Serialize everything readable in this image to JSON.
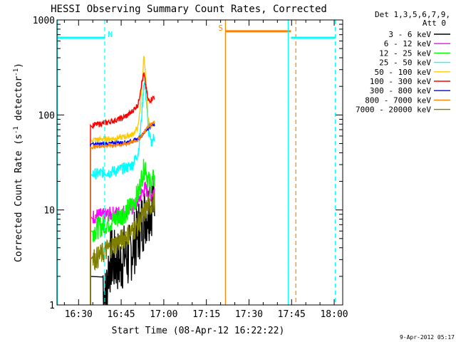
{
  "chart_data": {
    "type": "line",
    "title": "HESSI Observing Summary Count Rates, Corrected",
    "xlabel": "Start Time (08-Apr-12 16:22:22)",
    "ylabel_main": "Corrected Count Rate (s",
    "ylabel_sup1": "-1",
    "ylabel_mid": " detector",
    "ylabel_sup2": "-1",
    "ylabel_end": ")",
    "x_unit": "minutes since 16:00 UT",
    "xlim": [
      22.4,
      123
    ],
    "ylim": [
      1,
      1000
    ],
    "yscale": "log",
    "x_ticks": [
      {
        "value": 30,
        "label": "16:30"
      },
      {
        "value": 45,
        "label": "16:45"
      },
      {
        "value": 60,
        "label": "17:00"
      },
      {
        "value": 75,
        "label": "17:15"
      },
      {
        "value": 90,
        "label": "17:30"
      },
      {
        "value": 105,
        "label": "17:45"
      },
      {
        "value": 120,
        "label": "18:00"
      }
    ],
    "y_ticks": [
      {
        "value": 1,
        "label": "1"
      },
      {
        "value": 10,
        "label": "10"
      },
      {
        "value": 100,
        "label": "100"
      },
      {
        "value": 1000,
        "label": "1000"
      }
    ],
    "legend_header": [
      "Det 1,3,5,6,7,9,",
      "Att 0"
    ],
    "series": [
      {
        "name": "3 - 6 keV",
        "color": "#000000",
        "x": [
          38.5,
          39.5,
          40.5,
          41.5,
          42.5,
          43.5,
          44.5,
          45.5,
          46.5,
          47.5,
          48.5,
          49.5,
          50.5,
          51.5,
          52.5,
          53.5,
          54.5,
          55.5,
          56.5
        ],
        "y": [
          2.0,
          1.1,
          2.5,
          3.0,
          2.8,
          3.0,
          2.6,
          3.1,
          3.5,
          3.0,
          3.8,
          4.5,
          5.2,
          6.5,
          7.5,
          9.0,
          10.0,
          11.5,
          12.5
        ],
        "noise": 0.35
      },
      {
        "name": "6 - 12 keV",
        "color": "#ff00ff",
        "x": [
          35,
          37,
          39,
          41,
          43,
          45,
          47,
          49,
          51,
          52.5,
          53.5,
          54.5,
          55.5,
          56.5
        ],
        "y": [
          8.5,
          8.8,
          8.7,
          9.0,
          9.2,
          9.4,
          9.8,
          10.5,
          12.5,
          15.5,
          17.0,
          15.0,
          14.5,
          16.0
        ],
        "noise": 0.08
      },
      {
        "name": "12 - 25 keV",
        "color": "#00ff00",
        "x": [
          35,
          37,
          39,
          41,
          43,
          45,
          47,
          49,
          51,
          52.5,
          53.5,
          54.5,
          55.5,
          56.5
        ],
        "y": [
          6.0,
          6.5,
          7.0,
          7.5,
          8.0,
          8.8,
          9.8,
          11.5,
          15.0,
          24.0,
          30.0,
          20.0,
          19.0,
          21.0
        ],
        "noise": 0.12
      },
      {
        "name": "25 - 50 keV",
        "color": "#00ffff",
        "x": [
          35,
          37,
          39,
          41,
          43,
          45,
          47,
          49,
          51,
          52,
          53,
          53.8,
          54.5,
          55.5,
          56.5
        ],
        "y": [
          24,
          24,
          25,
          25,
          26,
          27,
          28,
          30,
          40,
          80,
          230,
          150,
          70,
          50,
          58
        ],
        "noise": 0.06
      },
      {
        "name": "50 - 100 keV",
        "color": "#ffcc00",
        "x": [
          35,
          37,
          39,
          41,
          43,
          45,
          47,
          49,
          51,
          52,
          53,
          53.8,
          54.5,
          55.5,
          56.5
        ],
        "y": [
          55,
          55,
          56,
          56,
          57,
          58,
          60,
          62,
          75,
          150,
          420,
          200,
          90,
          75,
          85
        ],
        "noise": 0.03
      },
      {
        "name": "100 - 300 keV",
        "color": "#ff0000",
        "x": [
          35,
          37,
          39,
          41,
          43,
          45,
          47,
          49,
          51,
          52,
          53,
          53.8,
          54.5,
          55.5,
          56.5
        ],
        "y": [
          78,
          80,
          82,
          85,
          88,
          92,
          98,
          110,
          130,
          200,
          270,
          190,
          140,
          145,
          155
        ],
        "noise": 0.03
      },
      {
        "name": "300 - 800 keV",
        "color": "#0000ff",
        "x": [
          35,
          37,
          39,
          41,
          43,
          45,
          47,
          49,
          51,
          52,
          53,
          54,
          55,
          56.5
        ],
        "y": [
          49,
          49,
          50,
          50,
          51,
          51,
          52,
          53,
          56,
          60,
          65,
          70,
          75,
          80
        ],
        "noise": 0.02
      },
      {
        "name": "800 - 7000 keV",
        "color": "#ff8000",
        "x": [
          35,
          37,
          39,
          41,
          43,
          45,
          47,
          49,
          51,
          52,
          53,
          54,
          55,
          56.5
        ],
        "y": [
          46,
          47,
          47,
          48,
          48,
          49,
          50,
          52,
          55,
          60,
          65,
          72,
          78,
          85
        ],
        "noise": 0.02
      },
      {
        "name": "7000 - 20000 keV",
        "color": "#808000",
        "x": [
          35,
          37,
          39,
          41,
          43,
          45,
          47,
          49,
          51,
          52,
          53,
          54,
          55,
          56.5
        ],
        "y": [
          3.0,
          3.2,
          3.6,
          4.0,
          4.4,
          4.8,
          5.4,
          6.0,
          7.0,
          8.0,
          9.0,
          10.5,
          11.0,
          12.0
        ],
        "noise": 0.12
      }
    ],
    "annotations": [
      {
        "type": "segment",
        "color": "#00ffff",
        "x0": 22.4,
        "x1": 39.2,
        "y": 650
      },
      {
        "type": "vline",
        "color": "#00ffff",
        "x": 22.6,
        "dashed": false
      },
      {
        "type": "vline",
        "color": "#00ffff",
        "x": 39.2,
        "dashed": true
      },
      {
        "type": "label",
        "text": "N",
        "color": "#00ffff",
        "x": 40.3,
        "y": 660
      },
      {
        "type": "vline",
        "color": "#ff8000",
        "x": 81.7,
        "dashed": false
      },
      {
        "type": "segment",
        "color": "#ff8000",
        "x0": 81.7,
        "x1": 104.8,
        "y": 760
      },
      {
        "type": "label",
        "text": "S",
        "color": "#ff8000",
        "x": 79.2,
        "y": 770
      },
      {
        "type": "vline",
        "color": "#ff8000",
        "x": 106.5,
        "dashed": true
      },
      {
        "type": "vline",
        "color": "#00ffff",
        "x": 103.8,
        "dashed": false
      },
      {
        "type": "segment",
        "color": "#00ffff",
        "x0": 104.8,
        "x1": 120.4,
        "y": 650
      },
      {
        "type": "vline",
        "color": "#00ffff",
        "x": 120.4,
        "dashed": true
      }
    ],
    "data_start_x": 34.2,
    "data_end_x": 56.8,
    "footer_date": "9-Apr-2012 05:17",
    "grid": false,
    "legend_position": "right"
  }
}
